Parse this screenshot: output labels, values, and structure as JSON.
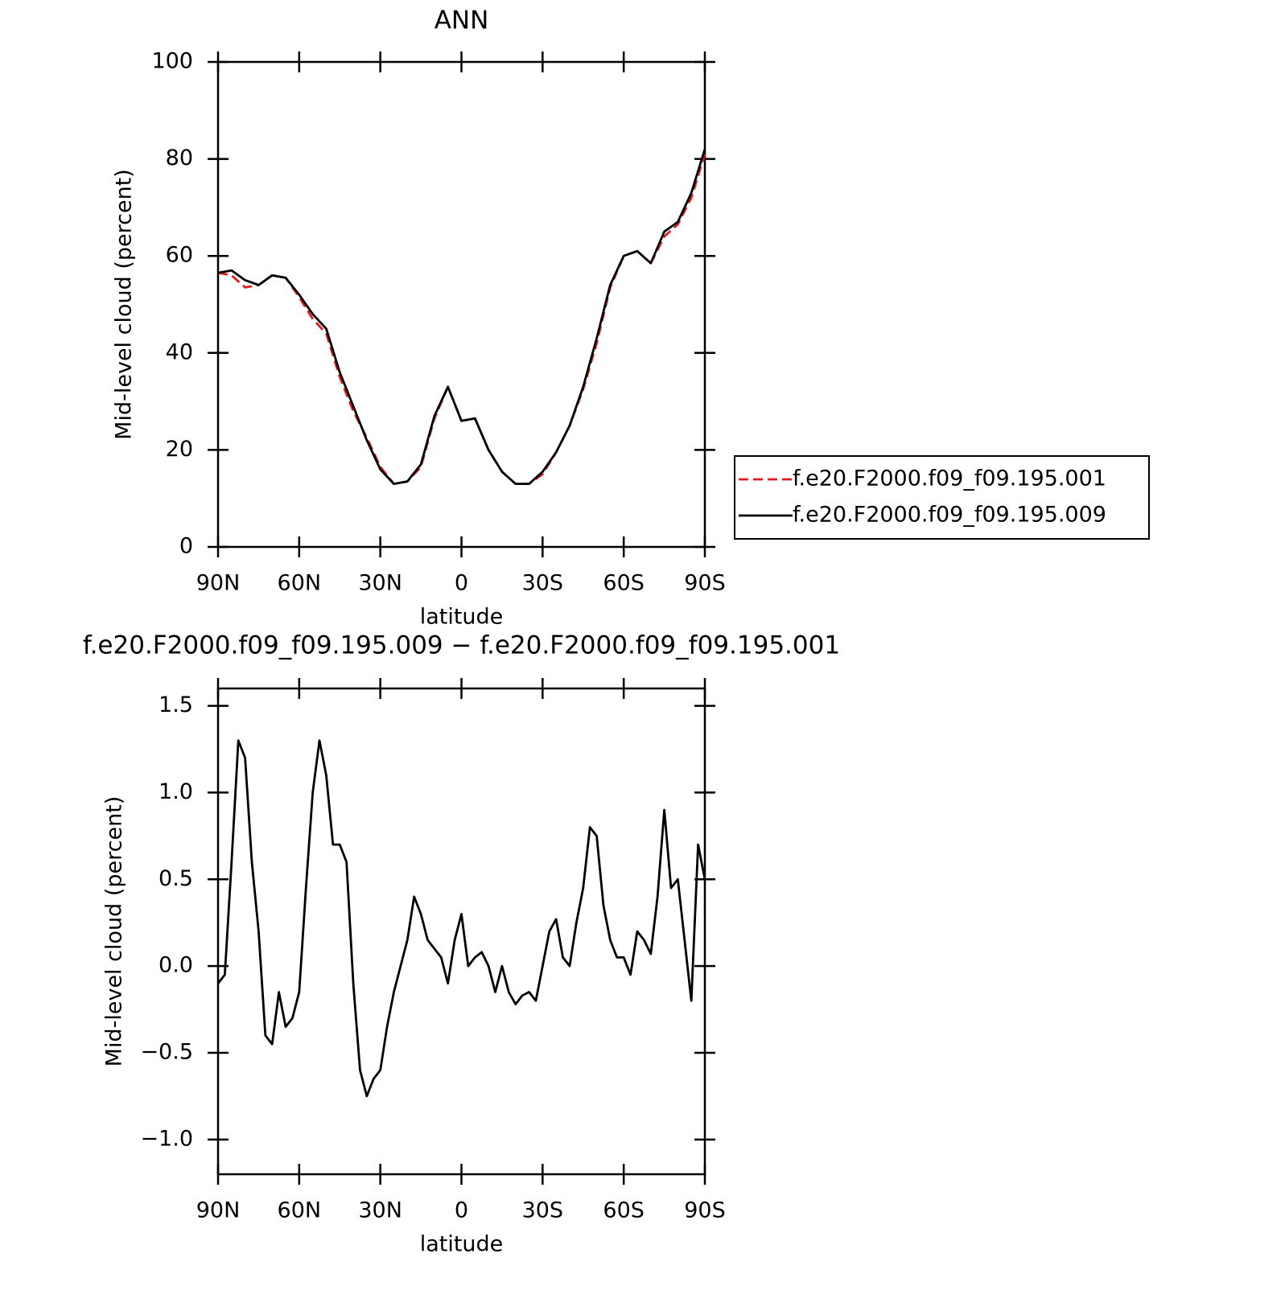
{
  "chart_data": [
    {
      "type": "line",
      "title": "ANN",
      "xlabel": "latitude",
      "ylabel": "Mid-level cloud (percent)",
      "x": [
        90,
        85,
        80,
        75,
        70,
        65,
        60,
        55,
        50,
        45,
        40,
        35,
        30,
        25,
        20,
        15,
        10,
        5,
        0,
        -5,
        -10,
        -15,
        -20,
        -25,
        -30,
        -35,
        -40,
        -45,
        -50,
        -55,
        -60,
        -65,
        -70,
        -75,
        -80,
        -85,
        -90
      ],
      "series": [
        {
          "name": "f.e20.F2000.f09_f09.195.001",
          "color": "#e41a1c",
          "dash": true,
          "values": [
            56.5,
            56,
            53.5,
            54,
            56,
            55.5,
            51.5,
            47,
            44,
            35,
            28,
            22.5,
            16.5,
            13,
            13.5,
            16.5,
            26.5,
            33,
            26,
            26.5,
            20,
            15.5,
            13,
            13,
            15,
            19.5,
            25,
            32.5,
            42,
            53.5,
            60,
            61,
            58.5,
            64,
            66.5,
            72,
            81
          ]
        },
        {
          "name": "f.e20.F2000.f09_f09.195.009",
          "color": "#000000",
          "dash": false,
          "values": [
            56.5,
            57,
            55,
            54,
            56,
            55.5,
            52,
            48,
            45,
            36,
            29,
            22,
            16,
            13,
            13.5,
            17,
            27,
            33,
            26,
            26.5,
            20,
            15.5,
            13,
            13,
            15.5,
            19.5,
            25,
            33,
            43,
            54,
            60,
            61,
            58.5,
            65,
            67,
            73,
            82
          ]
        }
      ],
      "xlim": [
        90,
        -90
      ],
      "ylim": [
        0,
        100
      ],
      "xticks": [
        {
          "value": 90,
          "label": "90N"
        },
        {
          "value": 60,
          "label": "60N"
        },
        {
          "value": 30,
          "label": "30N"
        },
        0,
        {
          "value": -30,
          "label": "30S"
        },
        {
          "value": -60,
          "label": "60S"
        },
        {
          "value": -90,
          "label": "90S"
        }
      ],
      "yticks": [
        0,
        20,
        40,
        60,
        80,
        100
      ],
      "legend": "right"
    },
    {
      "type": "line",
      "title": "f.e20.F2000.f09_f09.195.009 − f.e20.F2000.f09_f09.195.001",
      "xlabel": "latitude",
      "ylabel": "Mid-level cloud (percent)",
      "x": [
        90,
        87.5,
        85,
        82.5,
        80,
        77.5,
        75,
        72.5,
        70,
        67.5,
        65,
        62.5,
        60,
        57.5,
        55,
        52.5,
        50,
        47.5,
        45,
        42.5,
        40,
        37.5,
        35,
        32.5,
        30,
        27.5,
        25,
        22.5,
        20,
        17.5,
        15,
        12.5,
        10,
        7.5,
        5,
        2.5,
        0,
        -2.5,
        -5,
        -7.5,
        -10,
        -12.5,
        -15,
        -17.5,
        -20,
        -22.5,
        -25,
        -27.5,
        -30,
        -32.5,
        -35,
        -37.5,
        -40,
        -42.5,
        -45,
        -47.5,
        -50,
        -52.5,
        -55,
        -57.5,
        -60,
        -62.5,
        -65,
        -67.5,
        -70,
        -72.5,
        -75,
        -77.5,
        -80,
        -82.5,
        -85,
        -87.5,
        -90
      ],
      "series": [
        {
          "color": "#000000",
          "values": [
            -0.1,
            -0.05,
            0.6,
            1.3,
            1.2,
            0.6,
            0.2,
            -0.4,
            -0.45,
            -0.15,
            -0.35,
            -0.3,
            -0.15,
            0.45,
            1.0,
            1.3,
            1.1,
            0.7,
            0.7,
            0.6,
            -0.1,
            -0.6,
            -0.75,
            -0.65,
            -0.6,
            -0.35,
            -0.15,
            0.0,
            0.15,
            0.4,
            0.3,
            0.15,
            0.1,
            0.05,
            -0.1,
            0.15,
            0.3,
            0.0,
            0.05,
            0.08,
            0.0,
            -0.15,
            0.0,
            -0.15,
            -0.22,
            -0.17,
            -0.15,
            -0.2,
            0.0,
            0.2,
            0.27,
            0.05,
            0.0,
            0.25,
            0.45,
            0.8,
            0.75,
            0.35,
            0.15,
            0.05,
            0.05,
            -0.05,
            0.2,
            0.15,
            0.07,
            0.4,
            0.9,
            0.45,
            0.5,
            0.15,
            -0.2,
            0.7,
            0.5
          ]
        }
      ],
      "xlim": [
        90,
        -90
      ],
      "ylim": [
        -1.2,
        1.6
      ],
      "xticks": [
        {
          "value": 90,
          "label": "90N"
        },
        {
          "value": 60,
          "label": "60N"
        },
        {
          "value": 30,
          "label": "30N"
        },
        0,
        {
          "value": -30,
          "label": "30S"
        },
        {
          "value": -60,
          "label": "60S"
        },
        {
          "value": -90,
          "label": "90S"
        }
      ],
      "yticks": [
        {
          "value": -1,
          "label": "−1.0"
        },
        {
          "value": -0.5,
          "label": "−0.5"
        },
        {
          "value": 0,
          "label": "0.0"
        },
        0.5,
        {
          "value": 1,
          "label": "1.0"
        },
        1.5
      ]
    }
  ]
}
